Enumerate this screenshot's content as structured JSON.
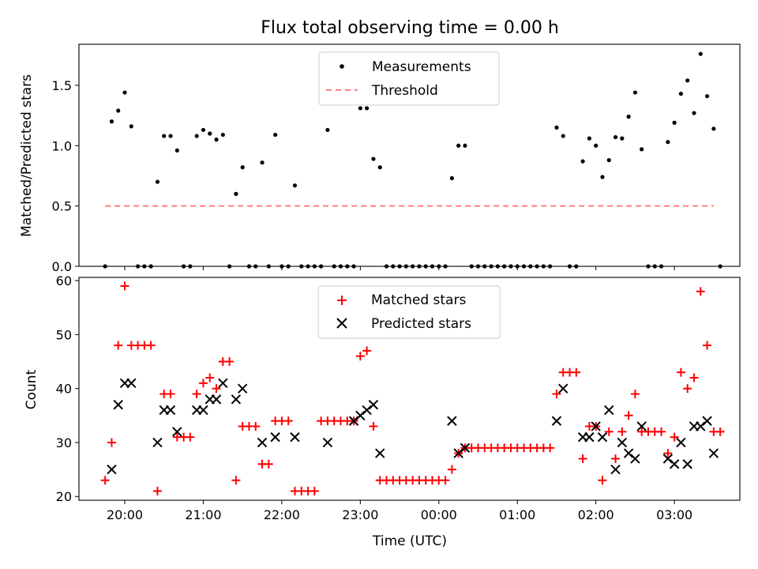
{
  "chart_data": [
    {
      "type": "scatter",
      "title": "Flux total observing time = 0.00 h",
      "xlabel": "",
      "ylabel": "Matched/Predicted stars",
      "ylim": [
        0,
        1.84
      ],
      "xlim": [
        "19:25",
        "03:50"
      ],
      "yticks": [
        "0.0",
        "0.5",
        "1.0",
        "1.5"
      ],
      "ytick_values": [
        0,
        0.5,
        1.0,
        1.5
      ],
      "legend_position": "top-center",
      "series": [
        {
          "name": "Measurements",
          "marker": "dot",
          "color": "#000000",
          "points": [
            [
              "19:45",
              0
            ],
            [
              "19:50",
              1.2
            ],
            [
              "19:55",
              1.29
            ],
            [
              "20:00",
              1.44
            ],
            [
              "20:05",
              1.16
            ],
            [
              "20:10",
              0
            ],
            [
              "20:15",
              0
            ],
            [
              "20:20",
              0
            ],
            [
              "20:25",
              0.7
            ],
            [
              "20:30",
              1.08
            ],
            [
              "20:35",
              1.08
            ],
            [
              "20:40",
              0.96
            ],
            [
              "20:45",
              0
            ],
            [
              "20:50",
              0
            ],
            [
              "20:55",
              1.08
            ],
            [
              "21:00",
              1.13
            ],
            [
              "21:05",
              1.1
            ],
            [
              "21:10",
              1.05
            ],
            [
              "21:15",
              1.09
            ],
            [
              "21:20",
              0
            ],
            [
              "21:25",
              0.6
            ],
            [
              "21:30",
              0.82
            ],
            [
              "21:35",
              0
            ],
            [
              "21:40",
              0
            ],
            [
              "21:45",
              0.86
            ],
            [
              "21:50",
              0
            ],
            [
              "21:55",
              1.09
            ],
            [
              "22:00",
              0
            ],
            [
              "22:05",
              0
            ],
            [
              "22:10",
              0.67
            ],
            [
              "22:15",
              0
            ],
            [
              "22:20",
              0
            ],
            [
              "22:25",
              0
            ],
            [
              "22:30",
              0
            ],
            [
              "22:35",
              1.13
            ],
            [
              "22:40",
              0
            ],
            [
              "22:45",
              0
            ],
            [
              "22:50",
              0
            ],
            [
              "22:55",
              0
            ],
            [
              "23:00",
              1.31
            ],
            [
              "23:05",
              1.31
            ],
            [
              "23:10",
              0.89
            ],
            [
              "23:15",
              0.82
            ],
            [
              "23:20",
              0
            ],
            [
              "23:25",
              0
            ],
            [
              "23:30",
              0
            ],
            [
              "23:35",
              0
            ],
            [
              "23:40",
              0
            ],
            [
              "23:45",
              0
            ],
            [
              "23:50",
              0
            ],
            [
              "23:55",
              0
            ],
            [
              "00:00",
              0
            ],
            [
              "00:05",
              0
            ],
            [
              "00:10",
              0.73
            ],
            [
              "00:15",
              1.0
            ],
            [
              "00:20",
              1.0
            ],
            [
              "00:25",
              0
            ],
            [
              "00:30",
              0
            ],
            [
              "00:35",
              0
            ],
            [
              "00:40",
              0
            ],
            [
              "00:45",
              0
            ],
            [
              "00:50",
              0
            ],
            [
              "00:55",
              0
            ],
            [
              "01:00",
              0
            ],
            [
              "01:05",
              0
            ],
            [
              "01:10",
              0
            ],
            [
              "01:15",
              0
            ],
            [
              "01:20",
              0
            ],
            [
              "01:25",
              0
            ],
            [
              "01:30",
              1.15
            ],
            [
              "01:35",
              1.08
            ],
            [
              "01:40",
              0
            ],
            [
              "01:45",
              0
            ],
            [
              "01:50",
              0.87
            ],
            [
              "01:55",
              1.06
            ],
            [
              "02:00",
              1.0
            ],
            [
              "02:05",
              0.74
            ],
            [
              "02:10",
              0.88
            ],
            [
              "02:15",
              1.07
            ],
            [
              "02:20",
              1.06
            ],
            [
              "02:25",
              1.24
            ],
            [
              "02:30",
              1.44
            ],
            [
              "02:35",
              0.97
            ],
            [
              "02:40",
              0
            ],
            [
              "02:45",
              0
            ],
            [
              "02:50",
              0
            ],
            [
              "02:55",
              1.03
            ],
            [
              "03:00",
              1.19
            ],
            [
              "03:05",
              1.43
            ],
            [
              "03:10",
              1.54
            ],
            [
              "03:15",
              1.27
            ],
            [
              "03:20",
              1.76
            ],
            [
              "03:25",
              1.41
            ],
            [
              "03:30",
              1.14
            ],
            [
              "03:35",
              0
            ]
          ]
        },
        {
          "name": "Threshold",
          "marker": "dashed-line",
          "color": "#ff7f7f",
          "points": [
            [
              "19:45",
              0.5
            ],
            [
              "03:30",
              0.5
            ]
          ]
        }
      ]
    },
    {
      "type": "scatter",
      "title": "",
      "xlabel": "Time (UTC)",
      "ylabel": "Count",
      "ylim": [
        19.3,
        60.6
      ],
      "xlim": [
        "19:25",
        "03:50"
      ],
      "yticks": [
        "20",
        "30",
        "40",
        "50",
        "60"
      ],
      "ytick_values": [
        20,
        30,
        40,
        50,
        60
      ],
      "xticks": [
        "20:00",
        "21:00",
        "22:00",
        "23:00",
        "00:00",
        "01:00",
        "02:00",
        "03:00"
      ],
      "legend_position": "top-center",
      "series": [
        {
          "name": "Matched stars",
          "marker": "plus",
          "color": "#ff0000",
          "points": [
            [
              "19:45",
              23
            ],
            [
              "19:50",
              30
            ],
            [
              "19:55",
              48
            ],
            [
              "20:00",
              59
            ],
            [
              "20:05",
              48
            ],
            [
              "20:10",
              48
            ],
            [
              "20:15",
              48
            ],
            [
              "20:20",
              48
            ],
            [
              "20:25",
              21
            ],
            [
              "20:30",
              39
            ],
            [
              "20:35",
              39
            ],
            [
              "20:40",
              31
            ],
            [
              "20:45",
              31
            ],
            [
              "20:50",
              31
            ],
            [
              "20:55",
              39
            ],
            [
              "21:00",
              41
            ],
            [
              "21:05",
              42
            ],
            [
              "21:10",
              40
            ],
            [
              "21:15",
              45
            ],
            [
              "21:20",
              45
            ],
            [
              "21:25",
              23
            ],
            [
              "21:30",
              33
            ],
            [
              "21:35",
              33
            ],
            [
              "21:40",
              33
            ],
            [
              "21:45",
              26
            ],
            [
              "21:50",
              26
            ],
            [
              "21:55",
              34
            ],
            [
              "22:00",
              34
            ],
            [
              "22:05",
              34
            ],
            [
              "22:10",
              21
            ],
            [
              "22:15",
              21
            ],
            [
              "22:20",
              21
            ],
            [
              "22:25",
              21
            ],
            [
              "22:30",
              34
            ],
            [
              "22:35",
              34
            ],
            [
              "22:40",
              34
            ],
            [
              "22:45",
              34
            ],
            [
              "22:50",
              34
            ],
            [
              "22:55",
              34
            ],
            [
              "23:00",
              46
            ],
            [
              "23:05",
              47
            ],
            [
              "23:10",
              33
            ],
            [
              "23:15",
              23
            ],
            [
              "23:20",
              23
            ],
            [
              "23:25",
              23
            ],
            [
              "23:30",
              23
            ],
            [
              "23:35",
              23
            ],
            [
              "23:40",
              23
            ],
            [
              "23:45",
              23
            ],
            [
              "23:50",
              23
            ],
            [
              "23:55",
              23
            ],
            [
              "00:00",
              23
            ],
            [
              "00:05",
              23
            ],
            [
              "00:10",
              25
            ],
            [
              "00:15",
              28
            ],
            [
              "00:20",
              29
            ],
            [
              "00:25",
              29
            ],
            [
              "00:30",
              29
            ],
            [
              "00:35",
              29
            ],
            [
              "00:40",
              29
            ],
            [
              "00:45",
              29
            ],
            [
              "00:50",
              29
            ],
            [
              "00:55",
              29
            ],
            [
              "01:00",
              29
            ],
            [
              "01:05",
              29
            ],
            [
              "01:10",
              29
            ],
            [
              "01:15",
              29
            ],
            [
              "01:20",
              29
            ],
            [
              "01:25",
              29
            ],
            [
              "01:30",
              39
            ],
            [
              "01:35",
              43
            ],
            [
              "01:40",
              43
            ],
            [
              "01:45",
              43
            ],
            [
              "01:50",
              27
            ],
            [
              "01:55",
              33
            ],
            [
              "02:00",
              33
            ],
            [
              "02:05",
              23
            ],
            [
              "02:10",
              32
            ],
            [
              "02:15",
              27
            ],
            [
              "02:20",
              32
            ],
            [
              "02:25",
              35
            ],
            [
              "02:30",
              39
            ],
            [
              "02:35",
              32
            ],
            [
              "02:40",
              32
            ],
            [
              "02:45",
              32
            ],
            [
              "02:50",
              32
            ],
            [
              "02:55",
              28
            ],
            [
              "03:00",
              31
            ],
            [
              "03:05",
              43
            ],
            [
              "03:10",
              40
            ],
            [
              "03:15",
              42
            ],
            [
              "03:20",
              58
            ],
            [
              "03:25",
              48
            ],
            [
              "03:30",
              32
            ],
            [
              "03:35",
              32
            ]
          ]
        },
        {
          "name": "Predicted stars",
          "marker": "x",
          "color": "#000000",
          "points": [
            [
              "19:50",
              25
            ],
            [
              "19:55",
              37
            ],
            [
              "20:00",
              41
            ],
            [
              "20:05",
              41
            ],
            [
              "20:25",
              30
            ],
            [
              "20:30",
              36
            ],
            [
              "20:35",
              36
            ],
            [
              "20:40",
              32
            ],
            [
              "20:55",
              36
            ],
            [
              "21:00",
              36
            ],
            [
              "21:05",
              38
            ],
            [
              "21:10",
              38
            ],
            [
              "21:15",
              41
            ],
            [
              "21:25",
              38
            ],
            [
              "21:30",
              40
            ],
            [
              "21:45",
              30
            ],
            [
              "21:55",
              31
            ],
            [
              "22:10",
              31
            ],
            [
              "22:35",
              30
            ],
            [
              "22:55",
              34
            ],
            [
              "23:00",
              35
            ],
            [
              "23:05",
              36
            ],
            [
              "23:10",
              37
            ],
            [
              "23:15",
              28
            ],
            [
              "00:10",
              34
            ],
            [
              "00:15",
              28
            ],
            [
              "00:20",
              29
            ],
            [
              "01:30",
              34
            ],
            [
              "01:35",
              40
            ],
            [
              "01:50",
              31
            ],
            [
              "01:55",
              31
            ],
            [
              "02:00",
              33
            ],
            [
              "02:05",
              31
            ],
            [
              "02:10",
              36
            ],
            [
              "02:15",
              25
            ],
            [
              "02:20",
              30
            ],
            [
              "02:25",
              28
            ],
            [
              "02:30",
              27
            ],
            [
              "02:35",
              33
            ],
            [
              "02:55",
              27
            ],
            [
              "03:00",
              26
            ],
            [
              "03:05",
              30
            ],
            [
              "03:10",
              26
            ],
            [
              "03:15",
              33
            ],
            [
              "03:20",
              33
            ],
            [
              "03:25",
              34
            ],
            [
              "03:30",
              28
            ]
          ]
        }
      ]
    }
  ]
}
